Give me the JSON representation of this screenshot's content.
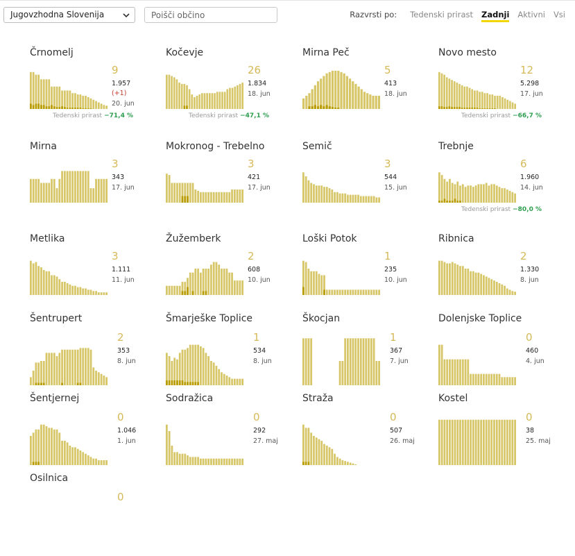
{
  "region_select": {
    "value": "Jugovzhodna Slovenija"
  },
  "search": {
    "placeholder": "Poišči občino"
  },
  "sort": {
    "label": "Razvrsti po:",
    "options": [
      "Tedenski prirast",
      "Zadnji",
      "Aktivni",
      "Vsi"
    ],
    "active": "Zadnji"
  },
  "growth_label": "Tedenski prirast",
  "colors": {
    "bar": "#d7c668",
    "bar_dark": "#b89c00",
    "number": "#d5b958",
    "growth": "#2e9e4f"
  },
  "municipalities": [
    {
      "name": "Črnomelj",
      "last": "9",
      "total": "1.957",
      "delta": "(+1)",
      "date": "20. jun",
      "growth": "−71,4 %",
      "bars": [
        0.56,
        0.56,
        0.52,
        0.52,
        0.45,
        0.45,
        0.45,
        0.45,
        0.34,
        0.34,
        0.34,
        0.34,
        0.28,
        0.28,
        0.28,
        0.28,
        0.24,
        0.24,
        0.22,
        0.22,
        0.2,
        0.2,
        0.18,
        0.16,
        0.14,
        0.12,
        0.1,
        0.08,
        0.06,
        0.05
      ],
      "dark": [
        0.08,
        0.06,
        0.08,
        0.08,
        0.06,
        0.06,
        0.04,
        0.04,
        0.06,
        0.04,
        0.03,
        0.03,
        0.04,
        0.03,
        0.02,
        0.02,
        0.02,
        0.02,
        0.02,
        0.02,
        0.01,
        0.01,
        0.01,
        0.01,
        0,
        0,
        0,
        0,
        0,
        0
      ]
    },
    {
      "name": "Kočevje",
      "last": "26",
      "total": "1.834",
      "date": "18. jun",
      "growth": "−47,1 %",
      "bars": [
        0.52,
        0.52,
        0.5,
        0.48,
        0.45,
        0.4,
        0.38,
        0.38,
        0.36,
        0.3,
        0.22,
        0.18,
        0.2,
        0.22,
        0.24,
        0.24,
        0.24,
        0.24,
        0.24,
        0.24,
        0.26,
        0.26,
        0.26,
        0.26,
        0.3,
        0.32,
        0.32,
        0.34,
        0.36,
        0.38,
        0.4
      ],
      "dark": [
        0,
        0,
        0,
        0,
        0,
        0,
        0,
        0.05,
        0.05,
        0,
        0,
        0,
        0,
        0,
        0,
        0,
        0,
        0,
        0,
        0,
        0,
        0,
        0,
        0,
        0,
        0,
        0,
        0,
        0,
        0,
        0
      ]
    },
    {
      "name": "Mirna Peč",
      "last": "5",
      "total": "413",
      "date": "18. jun",
      "growth": "",
      "bars": [
        0.16,
        0.2,
        0.24,
        0.3,
        0.36,
        0.42,
        0.46,
        0.5,
        0.54,
        0.56,
        0.58,
        0.58,
        0.58,
        0.56,
        0.54,
        0.5,
        0.46,
        0.42,
        0.38,
        0.34,
        0.3,
        0.26,
        0.24,
        0.22,
        0.2,
        0.2,
        0.2
      ],
      "dark": [
        0,
        0,
        0.04,
        0.04,
        0.06,
        0.04,
        0.06,
        0.04,
        0.06,
        0.04,
        0.03,
        0.02,
        0.02,
        0,
        0,
        0,
        0,
        0,
        0,
        0,
        0,
        0,
        0,
        0,
        0,
        0,
        0
      ]
    },
    {
      "name": "Novo mesto",
      "last": "12",
      "total": "5.298",
      "date": "17. jun",
      "growth": "−66,7 %",
      "bars": [
        0.56,
        0.54,
        0.52,
        0.48,
        0.46,
        0.44,
        0.42,
        0.4,
        0.38,
        0.36,
        0.34,
        0.34,
        0.32,
        0.3,
        0.28,
        0.28,
        0.26,
        0.26,
        0.24,
        0.24,
        0.22,
        0.22,
        0.2,
        0.2,
        0.2,
        0.18,
        0.16,
        0.14,
        0.12,
        0.1,
        0.08
      ],
      "dark": [
        0.04,
        0.04,
        0.03,
        0.03,
        0.04,
        0.03,
        0.03,
        0.03,
        0.03,
        0.02,
        0.02,
        0.02,
        0.02,
        0.02,
        0.02,
        0.02,
        0.01,
        0.01,
        0.01,
        0.01,
        0.01,
        0.01,
        0.01,
        0,
        0,
        0,
        0,
        0,
        0,
        0,
        0
      ]
    },
    {
      "name": "Mirna",
      "last": "3",
      "total": "343",
      "date": "17. jun",
      "growth": "",
      "bars": [
        0.36,
        0.36,
        0.36,
        0.36,
        0.3,
        0.3,
        0.3,
        0.3,
        0.36,
        0.36,
        0.22,
        0.36,
        0.48,
        0.48,
        0.48,
        0.48,
        0.48,
        0.48,
        0.48,
        0.48,
        0.48,
        0.48,
        0.48,
        0.22,
        0.22,
        0.36,
        0.36,
        0.36,
        0.36,
        0.36
      ],
      "dark": [
        0,
        0,
        0,
        0,
        0,
        0,
        0,
        0,
        0,
        0,
        0,
        0,
        0,
        0,
        0,
        0,
        0,
        0,
        0,
        0,
        0,
        0,
        0,
        0,
        0,
        0,
        0,
        0,
        0,
        0
      ]
    },
    {
      "name": "Mokronog - Trebelno",
      "last": "3",
      "total": "421",
      "date": "17. jun",
      "growth": "",
      "bars": [
        0.44,
        0.42,
        0.3,
        0.3,
        0.3,
        0.3,
        0.3,
        0.3,
        0.3,
        0.3,
        0.3,
        0.2,
        0.18,
        0.16,
        0.16,
        0.16,
        0.16,
        0.16,
        0.16,
        0.16,
        0.16,
        0.16,
        0.16,
        0.16,
        0.16,
        0.2,
        0.2,
        0.2,
        0.2,
        0.2
      ],
      "dark": [
        0,
        0,
        0,
        0,
        0,
        0,
        0.1,
        0.1,
        0.1,
        0,
        0,
        0,
        0,
        0,
        0,
        0,
        0,
        0,
        0,
        0,
        0,
        0,
        0,
        0,
        0,
        0,
        0,
        0,
        0,
        0
      ]
    },
    {
      "name": "Semič",
      "last": "3",
      "total": "544",
      "date": "15. jun",
      "growth": "",
      "bars": [
        0.46,
        0.4,
        0.34,
        0.3,
        0.28,
        0.26,
        0.26,
        0.26,
        0.24,
        0.24,
        0.22,
        0.2,
        0.16,
        0.16,
        0.14,
        0.14,
        0.14,
        0.12,
        0.12,
        0.12,
        0.12,
        0.12,
        0.1,
        0.1,
        0.1,
        0.1,
        0.1,
        0.1,
        0.08,
        0.08
      ],
      "dark": [
        0,
        0,
        0,
        0,
        0,
        0,
        0,
        0,
        0,
        0,
        0,
        0,
        0,
        0,
        0,
        0,
        0,
        0,
        0,
        0,
        0,
        0,
        0,
        0,
        0,
        0,
        0,
        0,
        0,
        0
      ]
    },
    {
      "name": "Trebnje",
      "last": "6",
      "total": "1.960",
      "date": "14. jun",
      "growth": "−80,0 %",
      "bars": [
        0.46,
        0.42,
        0.36,
        0.32,
        0.36,
        0.3,
        0.28,
        0.32,
        0.26,
        0.28,
        0.24,
        0.26,
        0.26,
        0.24,
        0.26,
        0.28,
        0.28,
        0.28,
        0.3,
        0.26,
        0.28,
        0.28,
        0.26,
        0.24,
        0.22,
        0.22,
        0.2,
        0.18,
        0.16,
        0.14
      ],
      "dark": [
        0.03,
        0.03,
        0.06,
        0.03,
        0.03,
        0.03,
        0.06,
        0.03,
        0.03,
        0,
        0,
        0,
        0,
        0,
        0,
        0,
        0,
        0,
        0,
        0,
        0,
        0,
        0,
        0,
        0,
        0,
        0,
        0,
        0,
        0
      ]
    },
    {
      "name": "Metlika",
      "last": "3",
      "total": "1.111",
      "date": "11. jun",
      "growth": "",
      "bars": [
        0.52,
        0.48,
        0.5,
        0.44,
        0.42,
        0.38,
        0.36,
        0.36,
        0.3,
        0.3,
        0.28,
        0.24,
        0.2,
        0.2,
        0.18,
        0.16,
        0.14,
        0.14,
        0.12,
        0.12,
        0.1,
        0.1,
        0.08,
        0.08,
        0.06,
        0.06,
        0.04,
        0.04,
        0.04,
        0.04
      ],
      "dark": [
        0,
        0,
        0,
        0,
        0,
        0,
        0,
        0,
        0,
        0,
        0,
        0,
        0,
        0,
        0,
        0,
        0,
        0,
        0,
        0,
        0,
        0,
        0,
        0,
        0,
        0,
        0,
        0,
        0,
        0
      ]
    },
    {
      "name": "Žužemberk",
      "last": "2",
      "total": "608",
      "date": "10. jun",
      "growth": "",
      "bars": [
        0.14,
        0.14,
        0.14,
        0.14,
        0.14,
        0.14,
        0.2,
        0.2,
        0.26,
        0.34,
        0.34,
        0.4,
        0.4,
        0.34,
        0.4,
        0.4,
        0.4,
        0.46,
        0.5,
        0.5,
        0.46,
        0.4,
        0.4,
        0.4,
        0.34,
        0.34,
        0.22,
        0.22,
        0.22,
        0.22
      ],
      "dark": [
        0,
        0,
        0,
        0,
        0,
        0,
        0.06,
        0.06,
        0.12,
        0,
        0.06,
        0,
        0,
        0,
        0.06,
        0.06,
        0,
        0,
        0,
        0,
        0,
        0,
        0,
        0,
        0,
        0,
        0,
        0,
        0,
        0
      ]
    },
    {
      "name": "Loški Potok",
      "last": "1",
      "total": "235",
      "date": "10. jun",
      "growth": "",
      "bars": [
        0.52,
        0.5,
        0.4,
        0.36,
        0.36,
        0.36,
        0.32,
        0.3,
        0.3,
        0.08,
        0.08,
        0.08,
        0.08,
        0.08,
        0.08,
        0.08,
        0.08,
        0.08,
        0.08,
        0.08,
        0.08,
        0.08,
        0.08,
        0.08,
        0.08,
        0.08,
        0.08,
        0.08,
        0.08,
        0.08
      ],
      "dark": [
        0.12,
        0,
        0,
        0,
        0,
        0,
        0,
        0,
        0.08,
        0,
        0,
        0,
        0,
        0,
        0,
        0,
        0,
        0,
        0,
        0,
        0,
        0,
        0,
        0,
        0,
        0,
        0,
        0,
        0,
        0
      ]
    },
    {
      "name": "Ribnica",
      "last": "2",
      "total": "1.330",
      "date": "8. jun",
      "growth": "",
      "bars": [
        0.52,
        0.52,
        0.5,
        0.48,
        0.48,
        0.5,
        0.48,
        0.46,
        0.44,
        0.44,
        0.4,
        0.4,
        0.36,
        0.36,
        0.34,
        0.34,
        0.32,
        0.3,
        0.28,
        0.26,
        0.24,
        0.22,
        0.2,
        0.18,
        0.16,
        0.14,
        0.1,
        0.08,
        0.06,
        0.05
      ],
      "dark": [
        0,
        0,
        0,
        0,
        0,
        0,
        0,
        0,
        0,
        0,
        0,
        0,
        0,
        0,
        0,
        0,
        0,
        0,
        0,
        0,
        0,
        0,
        0,
        0,
        0,
        0,
        0,
        0,
        0,
        0
      ]
    },
    {
      "name": "Šentrupert",
      "last": "2",
      "total": "353",
      "date": "8. jun",
      "growth": "",
      "bars": [
        0.1,
        0.18,
        0.28,
        0.28,
        0.3,
        0.3,
        0.4,
        0.4,
        0.4,
        0.4,
        0.36,
        0.4,
        0.44,
        0.44,
        0.44,
        0.44,
        0.44,
        0.44,
        0.44,
        0.46,
        0.46,
        0.46,
        0.46,
        0.44,
        0.22,
        0.18,
        0.16,
        0.14,
        0.12,
        0.1
      ],
      "dark": [
        0,
        0,
        0.03,
        0.03,
        0.03,
        0.03,
        0,
        0,
        0,
        0,
        0,
        0,
        0.03,
        0,
        0,
        0,
        0,
        0,
        0.03,
        0.03,
        0,
        0,
        0,
        0,
        0,
        0,
        0,
        0,
        0,
        0
      ]
    },
    {
      "name": "Šmarješke Toplice",
      "last": "1",
      "total": "534",
      "date": "8. jun",
      "growth": "",
      "bars": [
        0.4,
        0.36,
        0.3,
        0.34,
        0.32,
        0.4,
        0.44,
        0.44,
        0.46,
        0.5,
        0.5,
        0.5,
        0.5,
        0.48,
        0.46,
        0.4,
        0.36,
        0.3,
        0.28,
        0.24,
        0.2,
        0.16,
        0.14,
        0.12,
        0.1,
        0.08,
        0.08,
        0.08,
        0.08,
        0.08
      ],
      "dark": [
        0.06,
        0.06,
        0.06,
        0.06,
        0.06,
        0.06,
        0.06,
        0.04,
        0.04,
        0.04,
        0.04,
        0.04,
        0.04,
        0,
        0,
        0,
        0,
        0,
        0,
        0,
        0,
        0,
        0,
        0,
        0,
        0,
        0,
        0,
        0,
        0
      ]
    },
    {
      "name": "Škocjan",
      "last": "1",
      "total": "367",
      "date": "7. jun",
      "growth": "",
      "bars": [
        0.58,
        0.58,
        0.58,
        0.58,
        0,
        0,
        0,
        0,
        0,
        0,
        0,
        0,
        0,
        0,
        0.3,
        0.3,
        0.58,
        0.58,
        0.58,
        0.58,
        0.58,
        0.58,
        0.58,
        0.58,
        0.58,
        0.58,
        0.58,
        0.58,
        0.3,
        0.3
      ],
      "dark": [
        0,
        0,
        0,
        0,
        0,
        0,
        0,
        0,
        0,
        0,
        0,
        0,
        0,
        0,
        0,
        0,
        0,
        0,
        0,
        0,
        0,
        0,
        0,
        0,
        0,
        0,
        0,
        0,
        0,
        0
      ]
    },
    {
      "name": "Dolenjske Toplice",
      "last": "0",
      "total": "460",
      "date": "4. jun",
      "growth": "",
      "bars": [
        0.5,
        0.5,
        0.32,
        0.32,
        0.32,
        0.32,
        0.32,
        0.32,
        0.32,
        0.32,
        0.32,
        0.32,
        0.14,
        0.14,
        0.14,
        0.14,
        0.14,
        0.14,
        0.14,
        0.14,
        0.14,
        0.14,
        0.14,
        0.14,
        0.1,
        0.1,
        0.1,
        0.1,
        0.1,
        0.1
      ],
      "dark": [
        0,
        0,
        0,
        0,
        0,
        0,
        0,
        0,
        0,
        0,
        0,
        0,
        0,
        0,
        0,
        0,
        0,
        0,
        0,
        0,
        0,
        0,
        0,
        0,
        0,
        0,
        0,
        0,
        0,
        0
      ]
    },
    {
      "name": "Šentjernej",
      "last": "0",
      "total": "1.046",
      "date": "1. jun",
      "growth": "",
      "bars": [
        0.36,
        0.4,
        0.44,
        0.44,
        0.5,
        0.5,
        0.48,
        0.46,
        0.46,
        0.44,
        0.44,
        0.4,
        0.3,
        0.3,
        0.28,
        0.24,
        0.22,
        0.22,
        0.2,
        0.18,
        0.16,
        0.14,
        0.12,
        0.1,
        0.08,
        0.08,
        0.06,
        0.06,
        0.06,
        0.06
      ],
      "dark": [
        0,
        0.04,
        0.04,
        0.04,
        0,
        0,
        0,
        0,
        0,
        0,
        0,
        0,
        0,
        0,
        0,
        0,
        0,
        0,
        0,
        0,
        0,
        0,
        0,
        0,
        0,
        0,
        0,
        0,
        0,
        0
      ]
    },
    {
      "name": "Sodražica",
      "last": "0",
      "total": "292",
      "date": "27. maj",
      "growth": "",
      "bars": [
        0.5,
        0.42,
        0.24,
        0.16,
        0.16,
        0.14,
        0.14,
        0.14,
        0.12,
        0.1,
        0.1,
        0.1,
        0.1,
        0.08,
        0.08,
        0.08,
        0.08,
        0.08,
        0.08,
        0.08,
        0.08,
        0.08,
        0.08,
        0.08,
        0.08,
        0.08,
        0.08,
        0.08,
        0.08,
        0.08
      ],
      "dark": [
        0,
        0,
        0,
        0,
        0,
        0,
        0,
        0,
        0,
        0,
        0,
        0,
        0,
        0,
        0,
        0,
        0,
        0,
        0,
        0,
        0,
        0,
        0,
        0,
        0,
        0,
        0,
        0,
        0,
        0
      ]
    },
    {
      "name": "Straža",
      "last": "0",
      "total": "507",
      "date": "26. maj",
      "growth": "",
      "bars": [
        0.5,
        0.46,
        0.46,
        0.4,
        0.36,
        0.34,
        0.32,
        0.3,
        0.26,
        0.24,
        0.22,
        0.2,
        0.14,
        0.1,
        0.08,
        0.06,
        0.05,
        0.04,
        0.03,
        0.02,
        0.01,
        0,
        0,
        0,
        0,
        0,
        0,
        0,
        0,
        0
      ],
      "dark": [
        0.04,
        0.04,
        0.04,
        0,
        0,
        0,
        0,
        0,
        0,
        0,
        0,
        0,
        0,
        0,
        0,
        0,
        0,
        0,
        0,
        0,
        0,
        0,
        0,
        0,
        0,
        0,
        0,
        0,
        0,
        0
      ]
    },
    {
      "name": "Kostel",
      "last": "0",
      "total": "38",
      "date": "25. maj",
      "growth": "",
      "bars": [
        0.56,
        0.56,
        0.56,
        0.56,
        0.56,
        0.56,
        0.56,
        0.56,
        0.56,
        0.56,
        0.56,
        0.56,
        0.56,
        0.56,
        0.56,
        0.56,
        0.56,
        0.56,
        0.56,
        0.56,
        0.56,
        0.56,
        0.56,
        0.56,
        0.56,
        0.56,
        0.56,
        0.56,
        0.56,
        0.56
      ],
      "dark": [
        0,
        0,
        0,
        0,
        0,
        0,
        0,
        0,
        0,
        0,
        0,
        0,
        0,
        0,
        0,
        0,
        0,
        0,
        0,
        0,
        0,
        0,
        0,
        0,
        0,
        0,
        0,
        0,
        0,
        0
      ]
    },
    {
      "name": "Osilnica",
      "last": "0",
      "total": "",
      "date": "",
      "growth": "",
      "bars": [],
      "dark": []
    }
  ]
}
